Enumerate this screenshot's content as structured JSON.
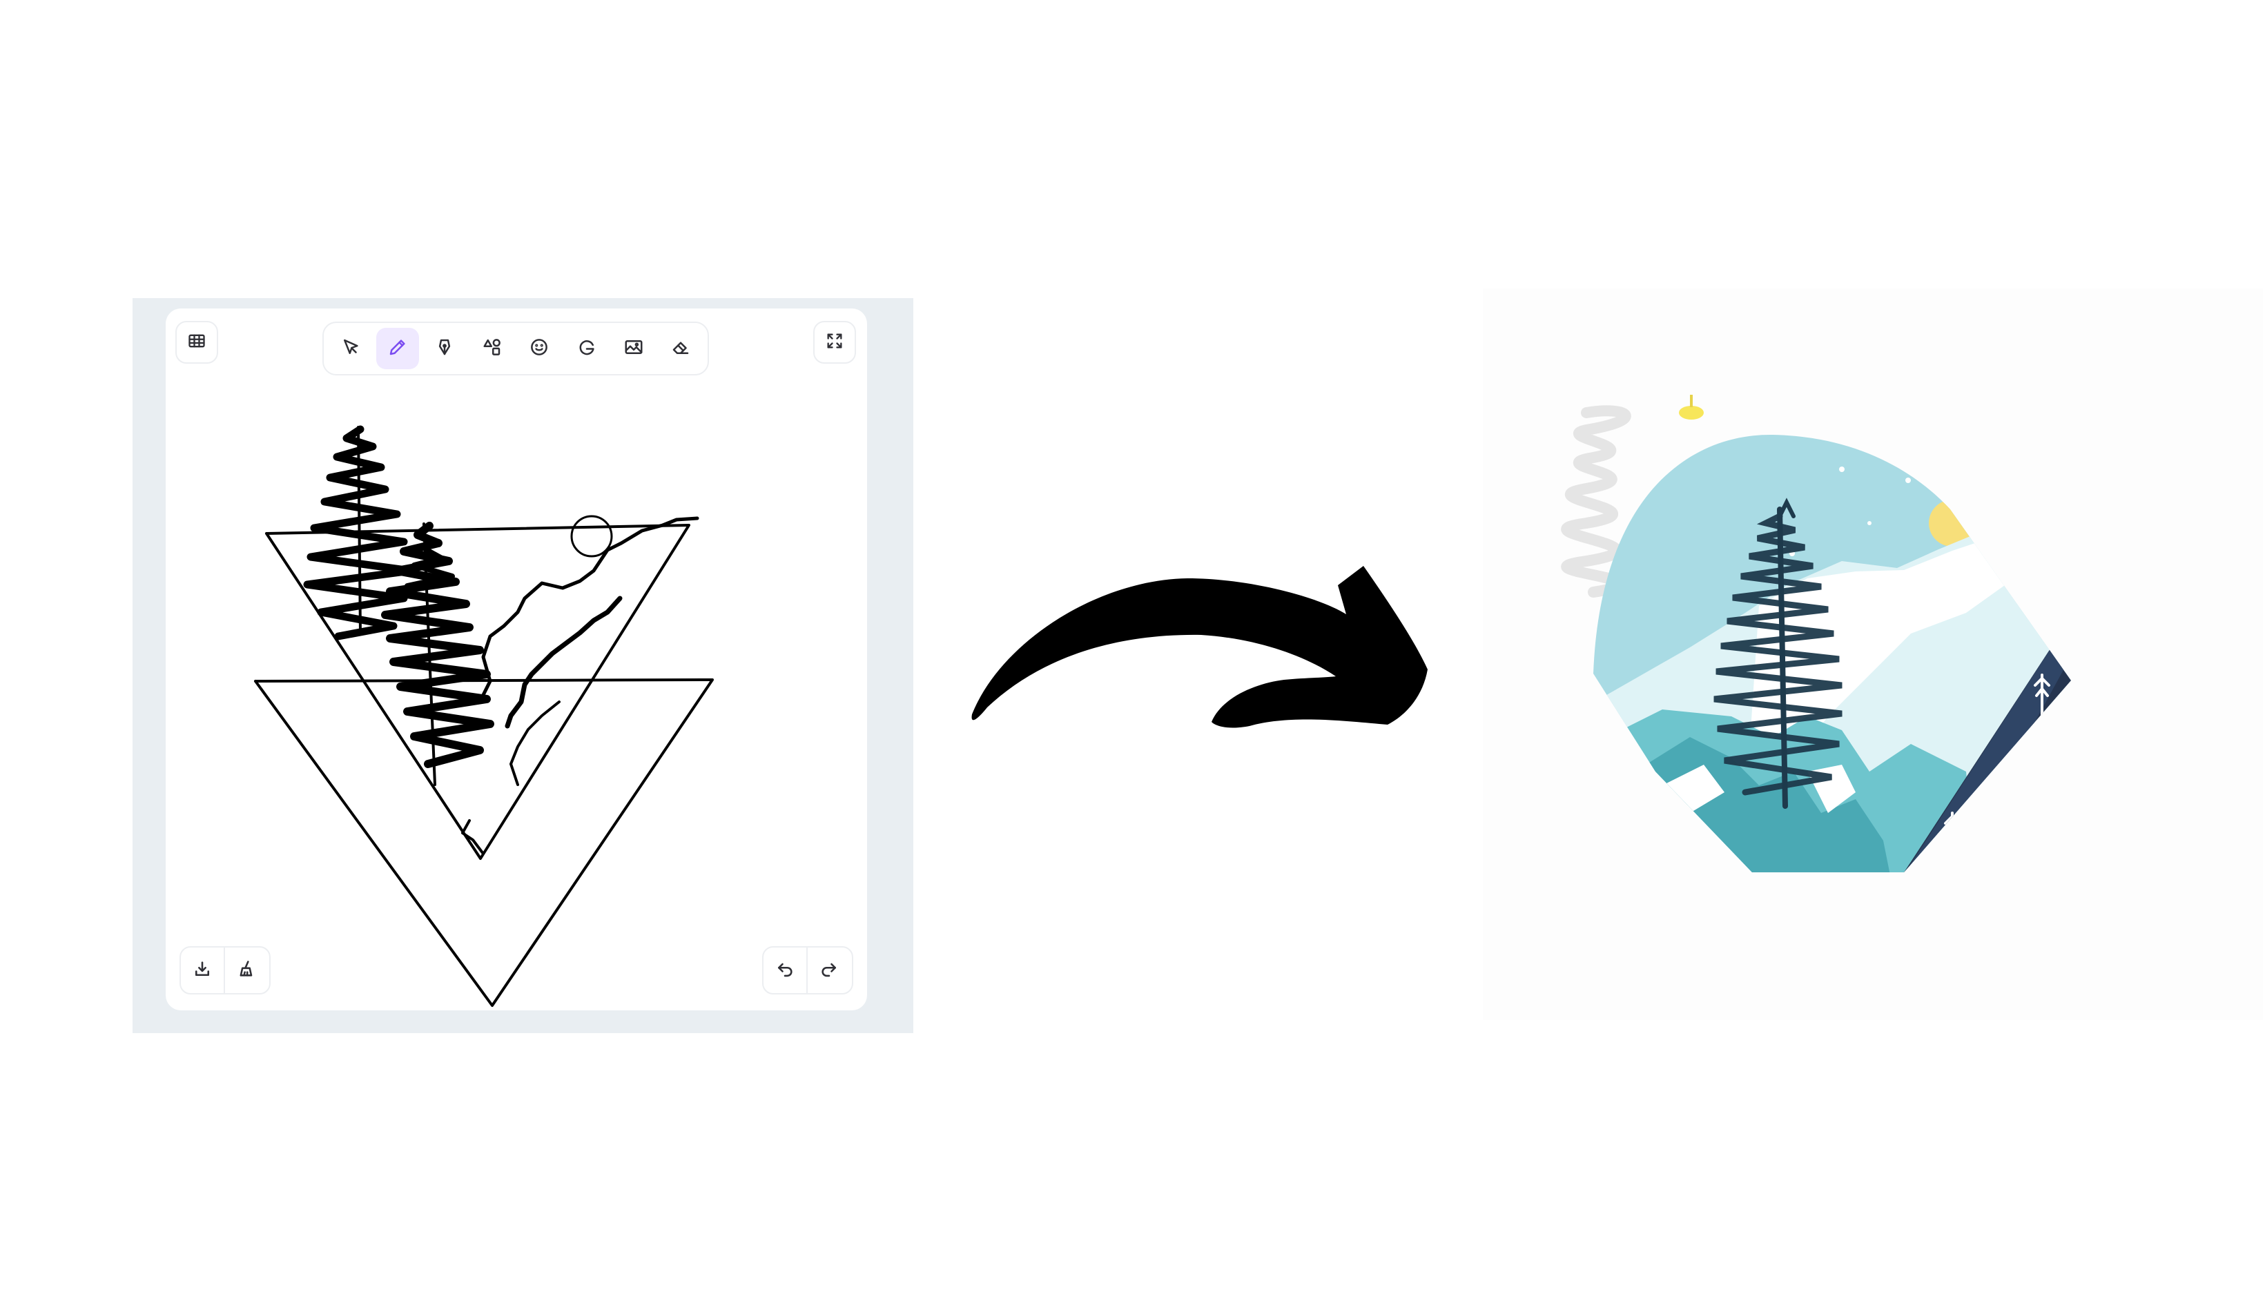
{
  "app": {
    "toolbar": {
      "tools": [
        {
          "name": "select",
          "icon": "cursor-arrow-icon",
          "active": false
        },
        {
          "name": "pencil",
          "icon": "pencil-icon",
          "active": true
        },
        {
          "name": "pen",
          "icon": "pen-nib-icon",
          "active": false
        },
        {
          "name": "shapes",
          "icon": "shapes-icon",
          "active": false
        },
        {
          "name": "emoji",
          "icon": "smiley-icon",
          "active": false
        },
        {
          "name": "gif",
          "icon": "g-logo-icon",
          "active": false
        },
        {
          "name": "image",
          "icon": "image-icon",
          "active": false
        },
        {
          "name": "eraser",
          "icon": "eraser-icon",
          "active": false
        }
      ],
      "active_color": "#7b4df0"
    },
    "corner_buttons": {
      "top_left": "grid-icon",
      "top_right": "fullscreen-icon",
      "bottom_left": [
        "download-icon",
        "clear-canvas-icon"
      ],
      "bottom_right": [
        "undo-icon",
        "redo-icon"
      ]
    },
    "colors": {
      "frame": "#e9eef2",
      "canvas": "#ffffff",
      "ink": "#000000"
    }
  },
  "transition": {
    "icon": "curved-arrow-right-icon",
    "color": "#000000"
  },
  "result": {
    "description_icon": "generated-landscape-illustration",
    "colors": {
      "sky": "#a9dbe4",
      "sun": "#f7df7a",
      "mountain_dark": "#26354f",
      "snow": "#ffffff",
      "teal": "#6ec5cd",
      "tree": "#1e3a4c"
    }
  }
}
